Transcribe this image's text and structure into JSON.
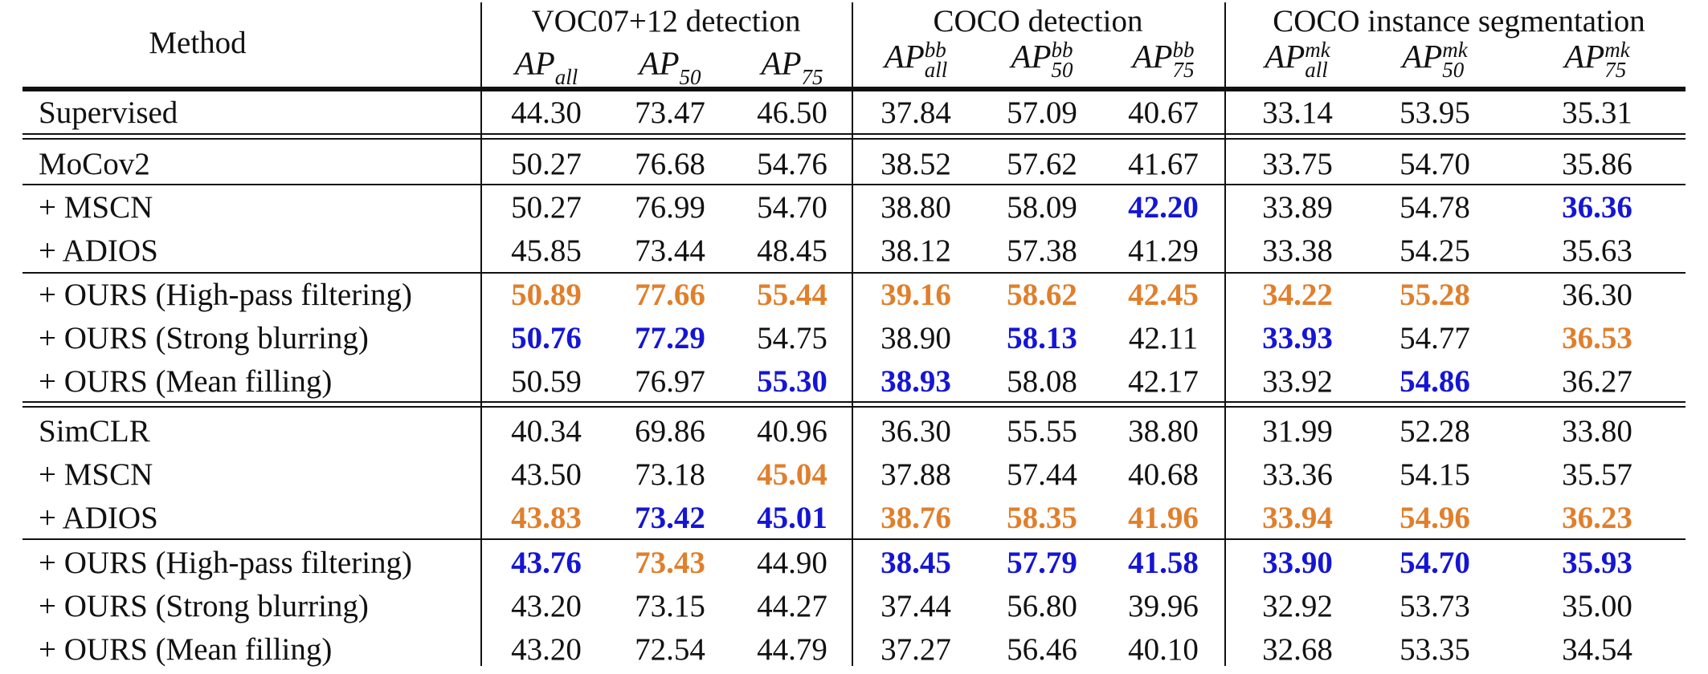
{
  "header": {
    "method_label": "Method",
    "groups": [
      "VOC07+12 detection",
      "COCO detection",
      "COCO instance segmentation"
    ],
    "metrics": [
      {
        "base": "AP",
        "sub": "all",
        "sup": ""
      },
      {
        "base": "AP",
        "sub": "50",
        "sup": ""
      },
      {
        "base": "AP",
        "sub": "75",
        "sup": ""
      },
      {
        "base": "AP",
        "sub": "all",
        "sup": "bb"
      },
      {
        "base": "AP",
        "sub": "50",
        "sup": "bb"
      },
      {
        "base": "AP",
        "sub": "75",
        "sup": "bb"
      },
      {
        "base": "AP",
        "sub": "all",
        "sup": "mk"
      },
      {
        "base": "AP",
        "sub": "50",
        "sup": "mk"
      },
      {
        "base": "AP",
        "sub": "75",
        "sup": "mk"
      }
    ]
  },
  "colors": {
    "best": "#e07f2c",
    "second": "#1515d4",
    "text": "#111111"
  },
  "rows": [
    {
      "method": "Supervised",
      "values": [
        "44.30",
        "73.47",
        "46.50",
        "37.84",
        "57.09",
        "40.67",
        "33.14",
        "53.95",
        "35.31"
      ],
      "hl": [
        "",
        "",
        "",
        "",
        "",
        "",
        "",
        "",
        ""
      ]
    },
    {
      "method": "MoCov2",
      "values": [
        "50.27",
        "76.68",
        "54.76",
        "38.52",
        "57.62",
        "41.67",
        "33.75",
        "54.70",
        "35.86"
      ],
      "hl": [
        "",
        "",
        "",
        "",
        "",
        "",
        "",
        "",
        ""
      ]
    },
    {
      "method": "+ MSCN",
      "values": [
        "50.27",
        "76.99",
        "54.70",
        "38.80",
        "58.09",
        "42.20",
        "33.89",
        "54.78",
        "36.36"
      ],
      "hl": [
        "",
        "",
        "",
        "",
        "",
        "blue",
        "",
        "",
        "blue"
      ]
    },
    {
      "method": "+ ADIOS",
      "values": [
        "45.85",
        "73.44",
        "48.45",
        "38.12",
        "57.38",
        "41.29",
        "33.38",
        "54.25",
        "35.63"
      ],
      "hl": [
        "",
        "",
        "",
        "",
        "",
        "",
        "",
        "",
        ""
      ]
    },
    {
      "method": "+ OURS (High-pass filtering)",
      "values": [
        "50.89",
        "77.66",
        "55.44",
        "39.16",
        "58.62",
        "42.45",
        "34.22",
        "55.28",
        "36.30"
      ],
      "hl": [
        "orange",
        "orange",
        "orange",
        "orange",
        "orange",
        "orange",
        "orange",
        "orange",
        ""
      ]
    },
    {
      "method": "+ OURS (Strong blurring)",
      "values": [
        "50.76",
        "77.29",
        "54.75",
        "38.90",
        "58.13",
        "42.11",
        "33.93",
        "54.77",
        "36.53"
      ],
      "hl": [
        "blue",
        "blue",
        "",
        "",
        "blue",
        "",
        "blue",
        "",
        "orange"
      ]
    },
    {
      "method": "+ OURS (Mean filling)",
      "values": [
        "50.59",
        "76.97",
        "55.30",
        "38.93",
        "58.08",
        "42.17",
        "33.92",
        "54.86",
        "36.27"
      ],
      "hl": [
        "",
        "",
        "blue",
        "blue",
        "",
        "",
        "",
        "blue",
        ""
      ]
    },
    {
      "method": "SimCLR",
      "values": [
        "40.34",
        "69.86",
        "40.96",
        "36.30",
        "55.55",
        "38.80",
        "31.99",
        "52.28",
        "33.80"
      ],
      "hl": [
        "",
        "",
        "",
        "",
        "",
        "",
        "",
        "",
        ""
      ]
    },
    {
      "method": "+ MSCN",
      "values": [
        "43.50",
        "73.18",
        "45.04",
        "37.88",
        "57.44",
        "40.68",
        "33.36",
        "54.15",
        "35.57"
      ],
      "hl": [
        "",
        "",
        "orange",
        "",
        "",
        "",
        "",
        "",
        ""
      ]
    },
    {
      "method": "+ ADIOS",
      "values": [
        "43.83",
        "73.42",
        "45.01",
        "38.76",
        "58.35",
        "41.96",
        "33.94",
        "54.96",
        "36.23"
      ],
      "hl": [
        "orange",
        "blue",
        "blue",
        "orange",
        "orange",
        "orange",
        "orange",
        "orange",
        "orange"
      ]
    },
    {
      "method": "+ OURS (High-pass filtering)",
      "values": [
        "43.76",
        "73.43",
        "44.90",
        "38.45",
        "57.79",
        "41.58",
        "33.90",
        "54.70",
        "35.93"
      ],
      "hl": [
        "blue",
        "orange",
        "",
        "blue",
        "blue",
        "blue",
        "blue",
        "blue",
        "blue"
      ]
    },
    {
      "method": "+ OURS (Strong blurring)",
      "values": [
        "43.20",
        "73.15",
        "44.27",
        "37.44",
        "56.80",
        "39.96",
        "32.92",
        "53.73",
        "35.00"
      ],
      "hl": [
        "",
        "",
        "",
        "",
        "",
        "",
        "",
        "",
        ""
      ]
    },
    {
      "method": "+ OURS (Mean filling)",
      "values": [
        "43.20",
        "72.54",
        "44.79",
        "37.27",
        "56.46",
        "40.10",
        "32.68",
        "53.35",
        "34.54"
      ],
      "hl": [
        "",
        "",
        "",
        "",
        "",
        "",
        "",
        "",
        ""
      ]
    }
  ]
}
